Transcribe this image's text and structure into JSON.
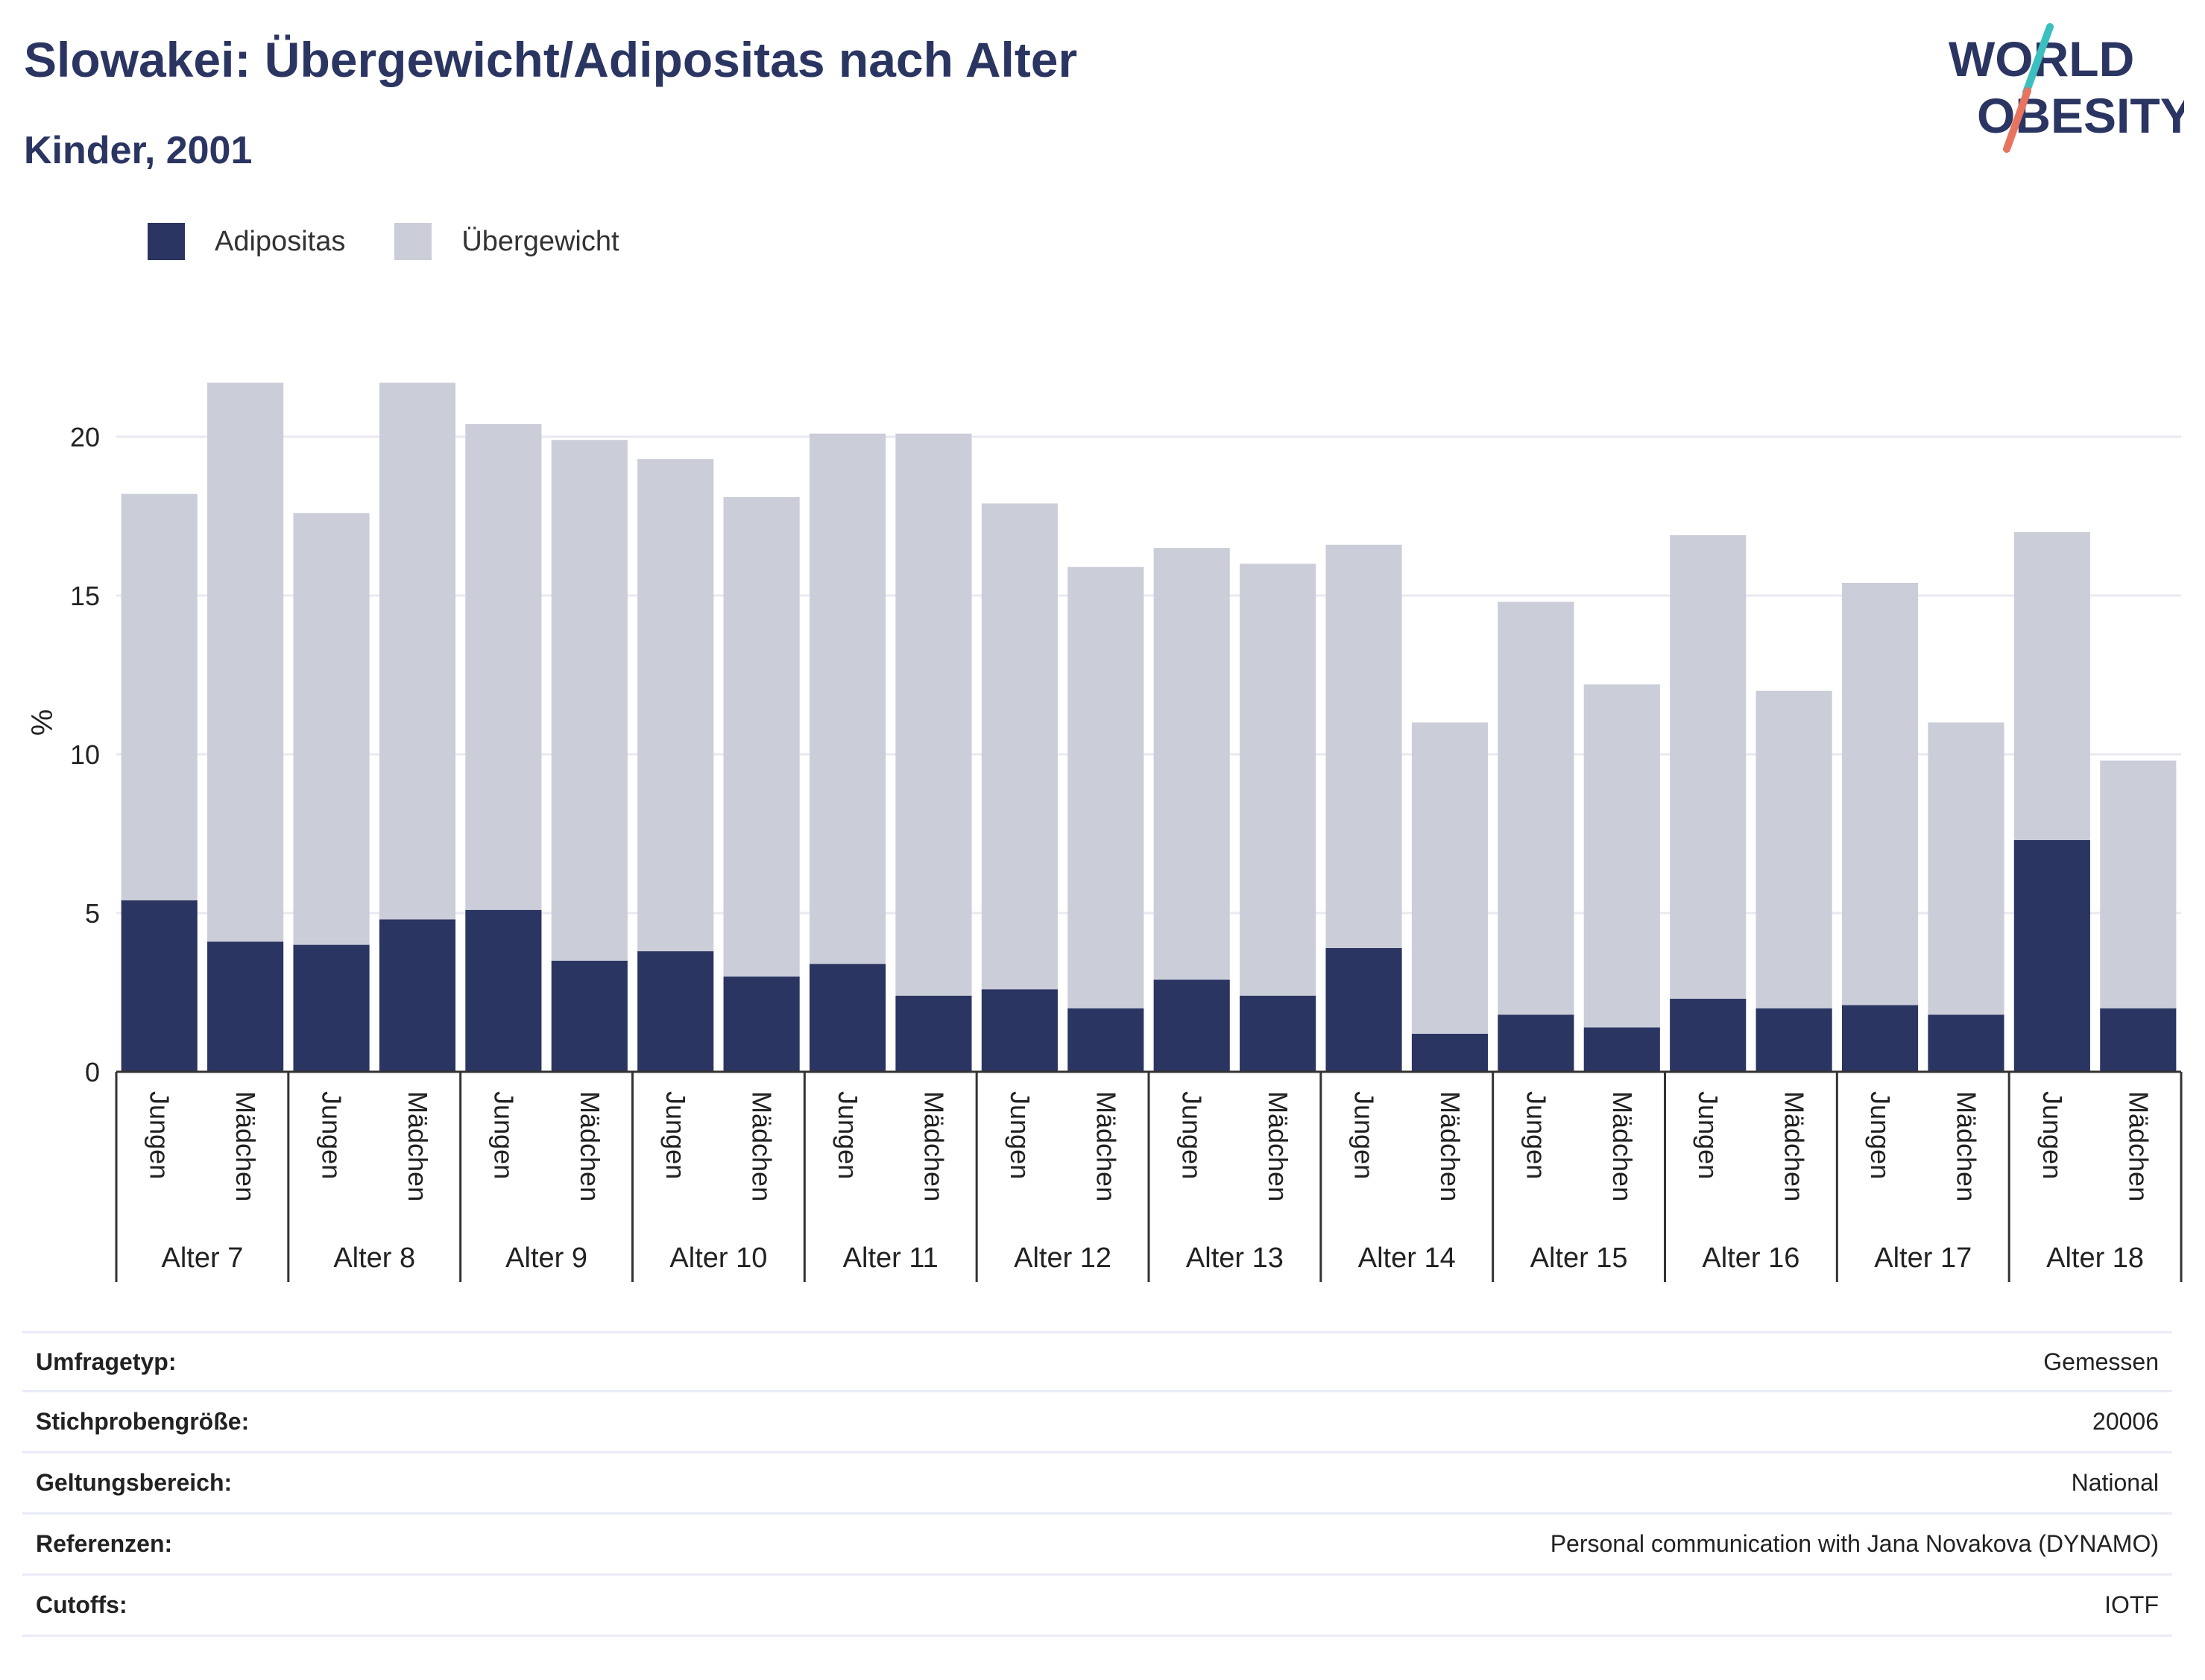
{
  "header": {
    "title": "Slowakei: Übergewicht/Adipositas nach Alter",
    "subtitle": "Kinder, 2001"
  },
  "logo": {
    "line1": "WORLD",
    "line2": "OBESITY",
    "accent_teal": "#3bbfbf",
    "accent_coral": "#e8735f"
  },
  "legend": {
    "items": [
      {
        "label": "Adipositas",
        "color": "#2b3562"
      },
      {
        "label": "Übergewicht",
        "color": "#cbcdd9"
      }
    ]
  },
  "chart_data": {
    "type": "bar",
    "stacked": true,
    "ylabel": "%",
    "ylim": [
      0,
      22
    ],
    "yticks": [
      0,
      5,
      10,
      15,
      20
    ],
    "grid": true,
    "groups": [
      "Alter 7",
      "Alter 8",
      "Alter 9",
      "Alter 10",
      "Alter 11",
      "Alter 12",
      "Alter 13",
      "Alter 14",
      "Alter 15",
      "Alter 16",
      "Alter 17",
      "Alter 18"
    ],
    "subcategories": [
      "Jungen",
      "Mädchen"
    ],
    "series": [
      {
        "name": "Adipositas",
        "color": "#2b3562",
        "values": [
          5.4,
          4.1,
          4.0,
          4.8,
          5.1,
          3.5,
          3.8,
          3.0,
          3.4,
          2.4,
          2.6,
          2.0,
          2.9,
          2.4,
          3.9,
          1.2,
          1.8,
          1.4,
          2.3,
          2.0,
          2.1,
          1.8,
          7.3,
          2.0
        ]
      },
      {
        "name": "Übergewicht",
        "color": "#cbcdd9",
        "values": [
          12.8,
          17.6,
          13.6,
          16.9,
          15.3,
          16.4,
          15.5,
          15.1,
          16.7,
          17.7,
          15.3,
          13.9,
          13.6,
          13.6,
          12.7,
          9.8,
          13.0,
          10.8,
          14.6,
          10.0,
          13.3,
          9.2,
          9.7,
          7.8
        ]
      }
    ]
  },
  "meta": {
    "rows": [
      {
        "label": "Umfragetyp:",
        "value": "Gemessen"
      },
      {
        "label": "Stichprobengröße:",
        "value": "20006"
      },
      {
        "label": "Geltungsbereich:",
        "value": "National"
      },
      {
        "label": "Referenzen:",
        "value": "Personal communication with Jana Novakova (DYNAMO)"
      },
      {
        "label": "Cutoffs:",
        "value": "IOTF"
      }
    ]
  }
}
